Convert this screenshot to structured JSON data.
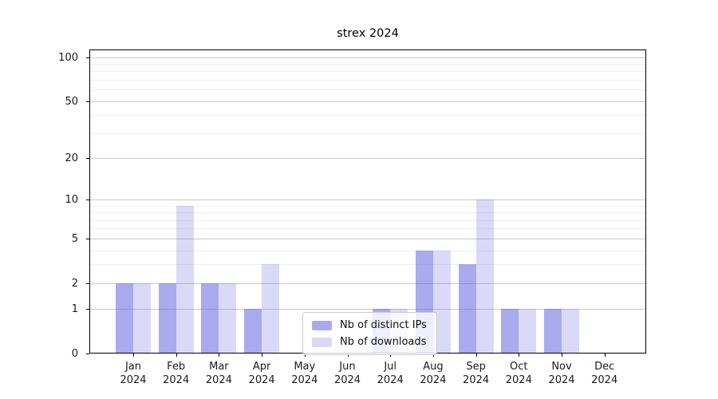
{
  "chart_data": {
    "type": "bar",
    "title": "strex 2024",
    "categories": [
      "Jan 2024",
      "Feb 2024",
      "Mar 2024",
      "Apr 2024",
      "May 2024",
      "Jun 2024",
      "Jul 2024",
      "Aug 2024",
      "Sep 2024",
      "Oct 2024",
      "Nov 2024",
      "Dec 2024"
    ],
    "series": [
      {
        "name": "Nb of distinct IPs",
        "values": [
          2,
          2,
          2,
          1,
          0,
          0,
          1,
          4,
          3,
          1,
          1,
          0
        ],
        "color": "#6464e2",
        "rgba": "rgba(100,100,226,0.55)"
      },
      {
        "name": "Nb of downloads",
        "values": [
          2,
          9,
          2,
          3,
          0,
          0,
          1,
          4,
          10,
          1,
          1,
          0
        ],
        "color": "#6464e2",
        "rgba": "rgba(100,100,226,0.24)"
      }
    ],
    "xlabel": "",
    "ylabel": "",
    "yscale": "log1p",
    "ylim": [
      0,
      100
    ],
    "yticks_major": [
      0,
      1,
      2,
      5,
      10,
      20,
      50,
      100
    ],
    "yticks_minor": [
      3,
      4,
      6,
      7,
      8,
      9,
      30,
      40,
      60,
      70,
      80,
      90
    ],
    "grid": true,
    "legend_position": "lower center"
  },
  "colors": {
    "bar_ips_rendered": "#aaaaf0",
    "bar_downloads_rendered": "#dcdcf8",
    "grid_major": "#c9c9c9",
    "grid_minor": "#efefef",
    "spine": "#000000",
    "text": "#1a1a1a",
    "background": "#ffffff"
  }
}
